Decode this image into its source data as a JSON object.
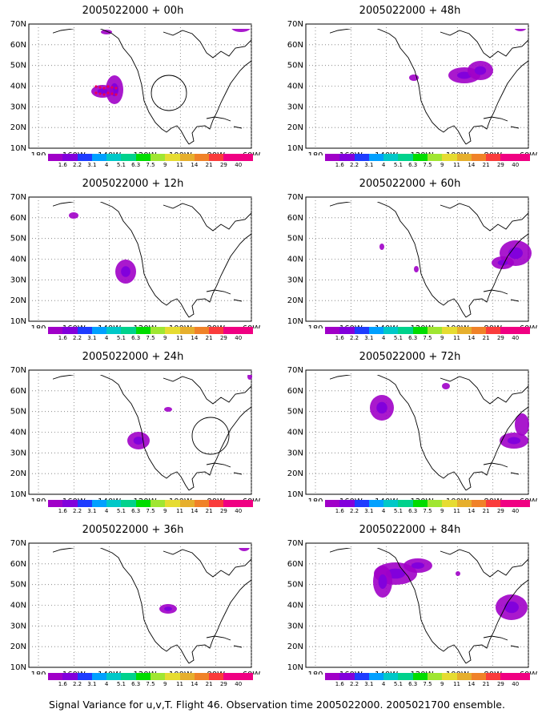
{
  "panels": [
    {
      "title": "2005022000 + 00h"
    },
    {
      "title": "2005022000 + 48h"
    },
    {
      "title": "2005022000 + 12h"
    },
    {
      "title": "2005022000 + 60h"
    },
    {
      "title": "2005022000 + 24h"
    },
    {
      "title": "2005022000 + 72h"
    },
    {
      "title": "2005022000 + 36h"
    },
    {
      "title": "2005022000 + 84h"
    }
  ],
  "axes": {
    "lat_labels": [
      "70N",
      "60N",
      "50N",
      "40N",
      "30N",
      "20N",
      "10N"
    ],
    "lon_labels": [
      "180",
      "160W",
      "140W",
      "120W",
      "100W",
      "80W",
      "60W"
    ]
  },
  "colorbar": {
    "labels": [
      "1.6",
      "2.2",
      "3.1",
      "4",
      "5.1",
      "6.3",
      "7.5",
      "9",
      "11",
      "14",
      "21",
      "29",
      "40"
    ],
    "colors": [
      "#a000c8",
      "#8200dc",
      "#1e3cff",
      "#00a0ff",
      "#00c8c8",
      "#00d28c",
      "#00dc00",
      "#a0e632",
      "#e6dc32",
      "#e6af2d",
      "#f08228",
      "#fa3c3c",
      "#f00082"
    ]
  },
  "caption": "Signal Variance for u,v,T. Flight 46. Observation time 2005022000. 2005021700 ensemble."
}
